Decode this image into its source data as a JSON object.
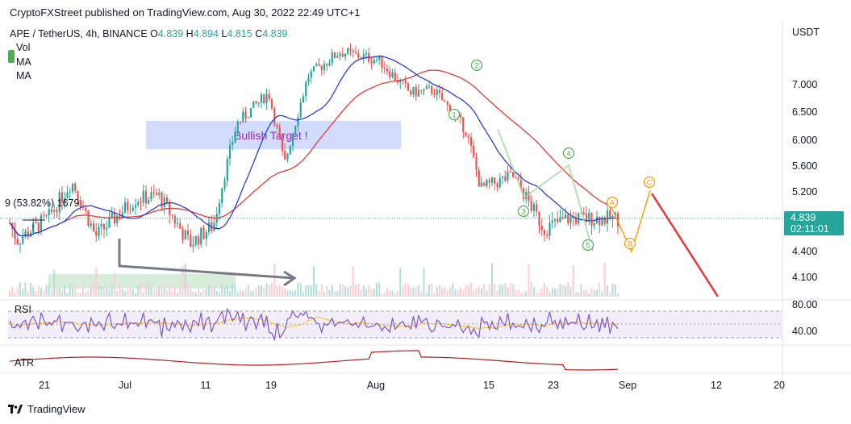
{
  "caption": "CryptoFXStreet published on TradingView.com, Aug 30, 2022 22:49 UTC+1",
  "legend": {
    "symbol": "APE / TetherUS, 4h, BINANCE",
    "o_label": "O",
    "o": "4.839",
    "h_label": "H",
    "h": "4.894",
    "l_label": "L",
    "l": "4.815",
    "c_label": "C",
    "c": "4.839"
  },
  "indicators": {
    "vol": "Vol",
    "ma1": "MA",
    "ma2": "MA",
    "rsi": "RSI",
    "atr": "ATR"
  },
  "currency": "USDT",
  "last_price": {
    "value": "4.839",
    "countdown": "02:11:01"
  },
  "fib_label": "9 (53.82%) 1679",
  "target_box_label": "Bullish Target !",
  "footer": "TradingView",
  "colors": {
    "up": "#26a69a",
    "down": "#ef5350",
    "ma_fast": "#2d3ed6",
    "ma_slow": "#e53935",
    "target_box": "#c9d6ff",
    "target_text": "#9c27b0",
    "rsi": "#7e57c2",
    "atr": "#b71c1c",
    "proj_orange": "#ff9800",
    "proj_red": "#e53935",
    "wave_green": "#4caf50"
  },
  "chart_data": {
    "type": "candlestick",
    "price_axis_ticks": [
      7.0,
      6.5,
      6.0,
      5.6,
      5.2,
      4.4,
      4.1
    ],
    "price_axis_labels": [
      "7.000",
      "6.500",
      "6.000",
      "5.600",
      "5.200",
      "4.400",
      "4.100"
    ],
    "time_axis_labels": [
      "21",
      "Jul",
      "11",
      "19",
      "Aug",
      "15",
      "23",
      "Sep",
      "12",
      "20"
    ],
    "ylim": [
      3.95,
      7.9
    ],
    "approx_close_path": [
      {
        "t": "Jun 19",
        "close": 5.05
      },
      {
        "t": "Jun 21",
        "close": 4.55
      },
      {
        "t": "Jun 25",
        "close": 4.85
      },
      {
        "t": "Jun 28",
        "close": 5.35
      },
      {
        "t": "Jul 1",
        "close": 4.6
      },
      {
        "t": "Jul 6",
        "close": 5.1
      },
      {
        "t": "Jul 9",
        "close": 5.15
      },
      {
        "t": "Jul 13",
        "close": 4.5
      },
      {
        "t": "Jul 16",
        "close": 4.75
      },
      {
        "t": "Jul 19",
        "close": 6.3
      },
      {
        "t": "Jul 23",
        "close": 6.85
      },
      {
        "t": "Jul 25",
        "close": 5.6
      },
      {
        "t": "Jul 28",
        "close": 7.15
      },
      {
        "t": "Aug 1",
        "close": 7.6
      },
      {
        "t": "Aug 6",
        "close": 7.45
      },
      {
        "t": "Aug 10",
        "close": 6.85
      },
      {
        "t": "Aug 13",
        "close": 6.9
      },
      {
        "t": "Aug 17",
        "close": 6.2
      },
      {
        "t": "Aug 19",
        "close": 5.25
      },
      {
        "t": "Aug 23",
        "close": 5.45
      },
      {
        "t": "Aug 27",
        "close": 4.7
      },
      {
        "t": "Aug 30",
        "close": 4.839
      }
    ],
    "elliott_labels": {
      "impulse": [
        "1",
        "2",
        "3",
        "4",
        "5"
      ],
      "correction": [
        "A",
        "B",
        "C"
      ]
    },
    "rsi_levels": [
      "80.00",
      "40.00"
    ]
  }
}
